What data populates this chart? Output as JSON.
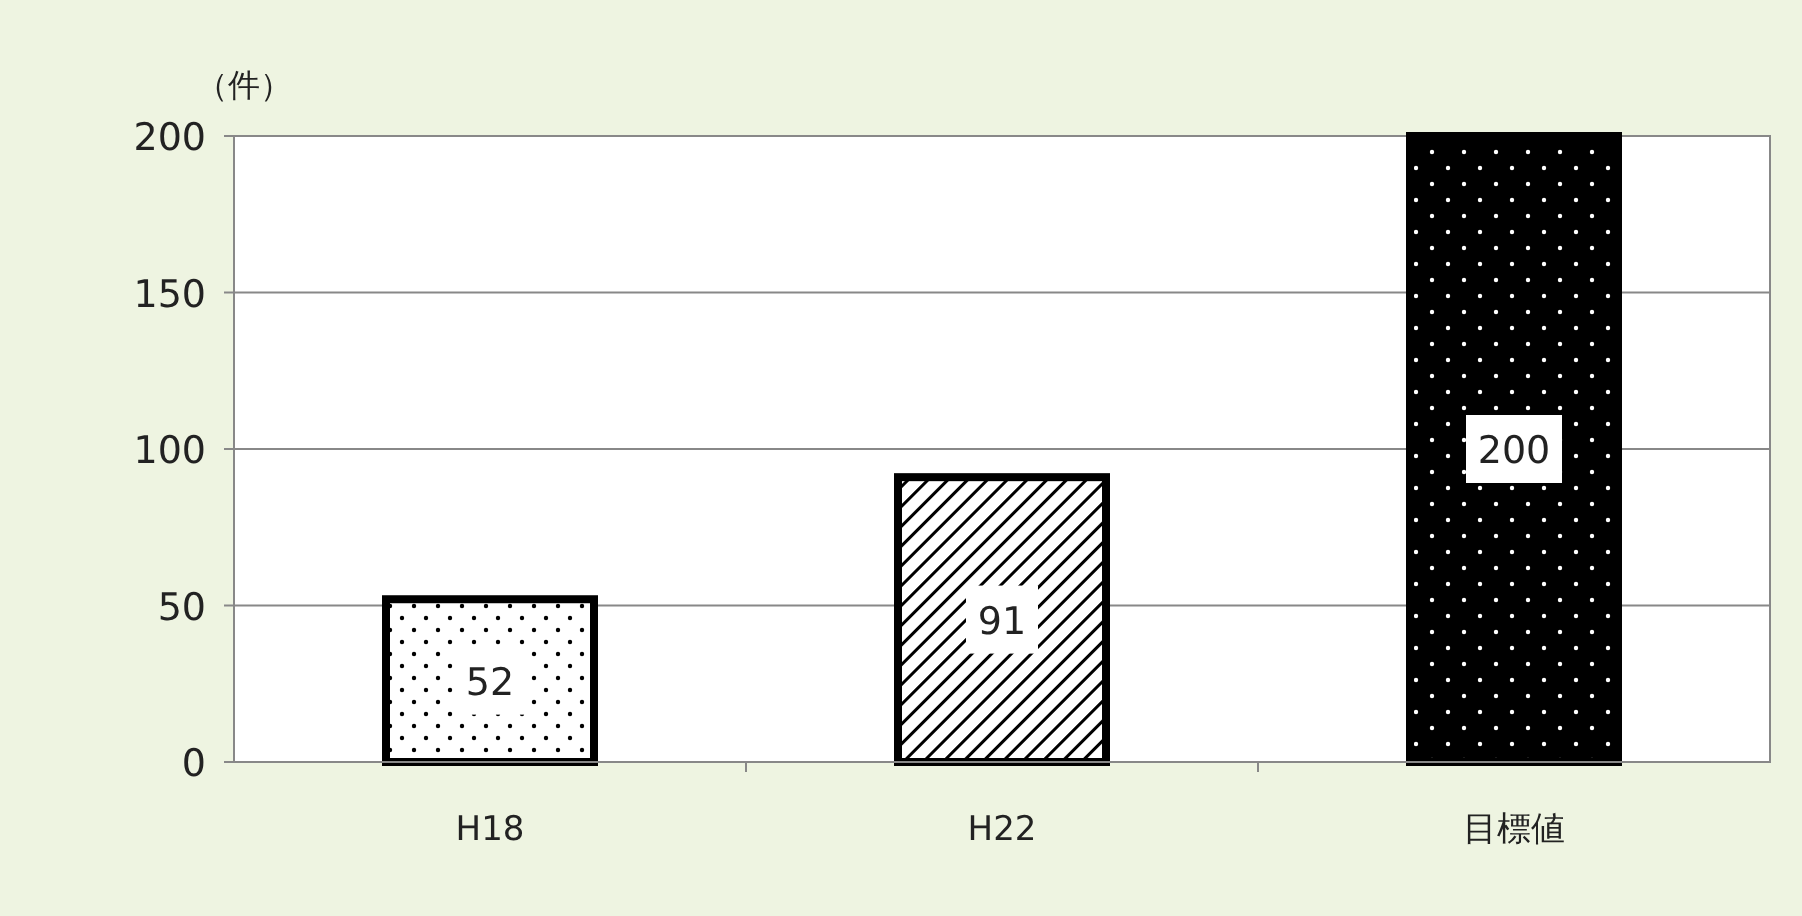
{
  "chart_data": {
    "type": "bar",
    "ylabel": "（件）",
    "categories": [
      "H18",
      "H22",
      "目標値"
    ],
    "values": [
      52,
      91,
      200
    ],
    "colors": [
      "#ffffff",
      "#ffffff",
      "#000000"
    ],
    "ylim": [
      0,
      200
    ],
    "yticks": [
      0,
      50,
      100,
      150,
      200
    ],
    "grid": "y",
    "data_labels": true
  }
}
